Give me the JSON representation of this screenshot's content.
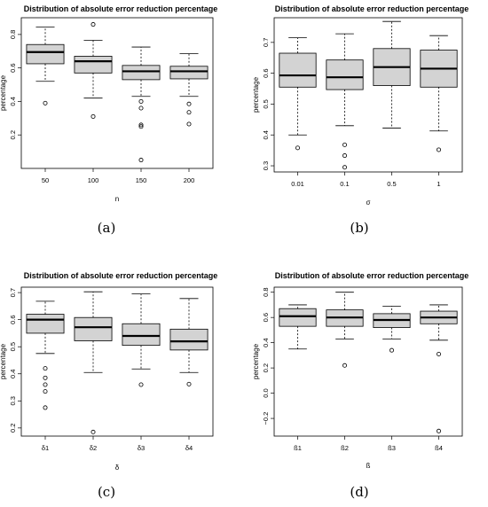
{
  "chart_data": [
    {
      "type": "box",
      "panel_label": "(a)",
      "title": "Distribution of absolute error reduction percentage",
      "xlabel": "n",
      "ylabel": "percentage",
      "ylim": [
        0.0,
        0.9
      ],
      "yticks": [
        0.2,
        0.4,
        0.6,
        0.8
      ],
      "categories": [
        "50",
        "100",
        "150",
        "200"
      ],
      "boxes": [
        {
          "whisker_low": 0.52,
          "q1": 0.625,
          "median": 0.695,
          "q3": 0.74,
          "whisker_high": 0.845,
          "outliers": [
            0.39
          ]
        },
        {
          "whisker_low": 0.42,
          "q1": 0.57,
          "median": 0.64,
          "q3": 0.67,
          "whisker_high": 0.765,
          "outliers": [
            0.31,
            0.86
          ]
        },
        {
          "whisker_low": 0.43,
          "q1": 0.53,
          "median": 0.58,
          "q3": 0.615,
          "whisker_high": 0.725,
          "outliers": [
            0.4,
            0.36,
            0.26,
            0.25,
            0.05
          ]
        },
        {
          "whisker_low": 0.43,
          "q1": 0.535,
          "median": 0.58,
          "q3": 0.61,
          "whisker_high": 0.685,
          "outliers": [
            0.385,
            0.335,
            0.265
          ]
        }
      ]
    },
    {
      "type": "box",
      "panel_label": "(b)",
      "title": "Distribution of absolute error reduction percentage",
      "xlabel": "σ",
      "ylabel": "percentage",
      "ylim": [
        0.28,
        0.78
      ],
      "yticks": [
        0.3,
        0.4,
        0.5,
        0.6,
        0.7
      ],
      "categories": [
        "0.01",
        "0.1",
        "0.5",
        "1"
      ],
      "boxes": [
        {
          "whisker_low": 0.4,
          "q1": 0.555,
          "median": 0.593,
          "q3": 0.665,
          "whisker_high": 0.715,
          "outliers": [
            0.358
          ]
        },
        {
          "whisker_low": 0.43,
          "q1": 0.547,
          "median": 0.587,
          "q3": 0.643,
          "whisker_high": 0.728,
          "outliers": [
            0.368,
            0.333,
            0.295
          ]
        },
        {
          "whisker_low": 0.422,
          "q1": 0.56,
          "median": 0.62,
          "q3": 0.68,
          "whisker_high": 0.768,
          "outliers": []
        },
        {
          "whisker_low": 0.413,
          "q1": 0.555,
          "median": 0.615,
          "q3": 0.675,
          "whisker_high": 0.722,
          "outliers": [
            0.352
          ]
        }
      ]
    },
    {
      "type": "box",
      "panel_label": "(c)",
      "title": "Distribution of absolute error reduction percentage",
      "xlabel": "δ",
      "ylabel": "percentage",
      "ylim": [
        0.17,
        0.72
      ],
      "yticks": [
        0.2,
        0.3,
        0.4,
        0.5,
        0.6,
        0.7
      ],
      "categories": [
        "δ1",
        "δ2",
        "δ3",
        "δ4"
      ],
      "boxes": [
        {
          "whisker_low": 0.475,
          "q1": 0.55,
          "median": 0.6,
          "q3": 0.62,
          "whisker_high": 0.668,
          "outliers": [
            0.42,
            0.385,
            0.36,
            0.335,
            0.275
          ]
        },
        {
          "whisker_low": 0.405,
          "q1": 0.522,
          "median": 0.572,
          "q3": 0.608,
          "whisker_high": 0.703,
          "outliers": [
            0.185
          ]
        },
        {
          "whisker_low": 0.418,
          "q1": 0.505,
          "median": 0.54,
          "q3": 0.585,
          "whisker_high": 0.695,
          "outliers": [
            0.36
          ]
        },
        {
          "whisker_low": 0.405,
          "q1": 0.488,
          "median": 0.52,
          "q3": 0.565,
          "whisker_high": 0.678,
          "outliers": [
            0.362
          ]
        }
      ]
    },
    {
      "type": "box",
      "panel_label": "(d)",
      "title": "Distribution of absolute error reduction percentage",
      "xlabel": "ß",
      "ylabel": "percentage",
      "ylim": [
        -0.34,
        0.84
      ],
      "yticks": [
        -0.2,
        0.0,
        0.2,
        0.4,
        0.6,
        0.8
      ],
      "ytick_labels": [
        "−0.2",
        "0.0",
        "0.2",
        "0.4",
        "0.6",
        "0.8"
      ],
      "categories": [
        "ß1",
        "ß2",
        "ß3",
        "ß4"
      ],
      "boxes": [
        {
          "whisker_low": 0.35,
          "q1": 0.53,
          "median": 0.61,
          "q3": 0.67,
          "whisker_high": 0.7,
          "outliers": []
        },
        {
          "whisker_low": 0.43,
          "q1": 0.53,
          "median": 0.6,
          "q3": 0.66,
          "whisker_high": 0.8,
          "outliers": [
            0.22
          ]
        },
        {
          "whisker_low": 0.43,
          "q1": 0.52,
          "median": 0.58,
          "q3": 0.63,
          "whisker_high": 0.69,
          "outliers": [
            0.34
          ]
        },
        {
          "whisker_low": 0.42,
          "q1": 0.55,
          "median": 0.6,
          "q3": 0.65,
          "whisker_high": 0.7,
          "outliers": [
            0.31,
            -0.3
          ]
        }
      ]
    }
  ]
}
